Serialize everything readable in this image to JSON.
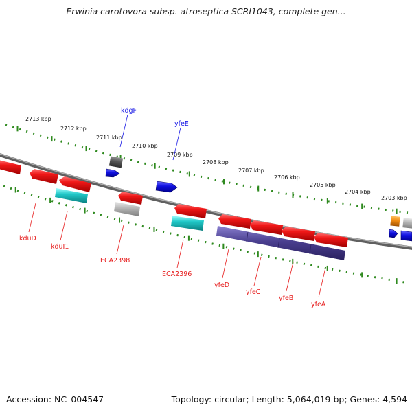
{
  "header": {
    "title": "Erwinia carotovora subsp. atroseptica SCRI1043, complete gen..."
  },
  "footer": {
    "accession": "Accession: NC_004547",
    "summary": "Topology: circular; Length: 5,064,019 bp; Genes: 4,594"
  },
  "colors": {
    "backbone": "#808080",
    "tick": "#2f8a1f",
    "forward_gene": "#1a1ae6",
    "reverse_gene": "#e61a1a",
    "rna": "#20c8c8",
    "other": "#b4b4b4",
    "operon": "#4a3f8f",
    "highlight": "#f08a10",
    "dark_feature": "#555555"
  },
  "scale_labels": [
    "2713 kbp",
    "2712 kbp",
    "2711 kbp",
    "2710 kbp",
    "2709 kbp",
    "2708 kbp",
    "2707 kbp",
    "2706 kbp",
    "2705 kbp",
    "2704 kbp",
    "2703 kbp"
  ],
  "gene_labels": {
    "forward": [
      "kdgF",
      "yfeE"
    ],
    "reverse": [
      "kduD",
      "kduI1",
      "ECA2398",
      "ECA2396",
      "yfeD",
      "yfeC",
      "yfeB",
      "yfeA"
    ]
  }
}
